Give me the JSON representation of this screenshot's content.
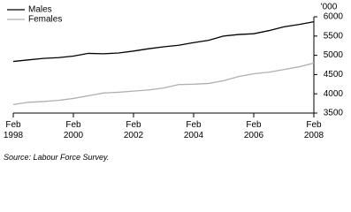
{
  "chart_data": {
    "type": "line",
    "y_label": "'000",
    "source": "Source: Labour Force Survey.",
    "x": [
      1998,
      1998.5,
      1999,
      1999.5,
      2000,
      2000.5,
      2001,
      2001.5,
      2002,
      2002.5,
      2003,
      2003.5,
      2004,
      2004.5,
      2005,
      2005.5,
      2006,
      2006.5,
      2007,
      2007.5,
      2008
    ],
    "series": [
      {
        "name": "Males",
        "color": "#000000",
        "values": [
          4840,
          4880,
          4920,
          4940,
          4980,
          5050,
          5040,
          5060,
          5110,
          5170,
          5220,
          5260,
          5330,
          5390,
          5500,
          5540,
          5560,
          5640,
          5740,
          5800,
          5870
        ]
      },
      {
        "name": "Females",
        "color": "#b0b0b0",
        "values": [
          3720,
          3780,
          3800,
          3830,
          3880,
          3950,
          4020,
          4040,
          4070,
          4100,
          4150,
          4240,
          4250,
          4270,
          4340,
          4450,
          4520,
          4560,
          4630,
          4700,
          4800
        ]
      }
    ],
    "xlim": [
      1998,
      2008
    ],
    "xticks": [
      {
        "value": 1998,
        "label": "Feb 1998"
      },
      {
        "value": 2000,
        "label": "Feb 2000"
      },
      {
        "value": 2002,
        "label": "Feb 2002"
      },
      {
        "value": 2004,
        "label": "Feb 2004"
      },
      {
        "value": 2006,
        "label": "Feb 2006"
      },
      {
        "value": 2008,
        "label": "Feb 2008"
      }
    ],
    "ylim": [
      3500,
      6000
    ],
    "yticks": [
      3500,
      4000,
      4500,
      5000,
      5500,
      6000
    ],
    "grid": false,
    "legend": "top-left"
  }
}
